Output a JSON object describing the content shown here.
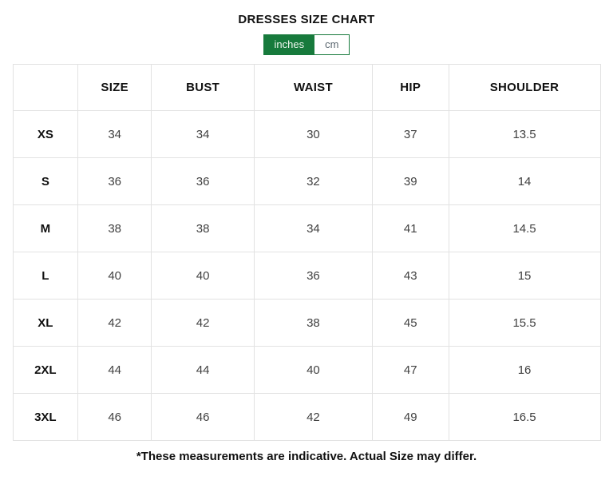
{
  "page": {
    "title": "DRESSES SIZE CHART",
    "footnote": "*These measurements are indicative. Actual Size may differ."
  },
  "unit_toggle": {
    "selected": "inches",
    "options": [
      {
        "label": "inches"
      },
      {
        "label": "cm"
      }
    ]
  },
  "chart_data": {
    "type": "table",
    "title": "DRESSES SIZE CHART",
    "unit": "inches",
    "columns": [
      "",
      "SIZE",
      "BUST",
      "WAIST",
      "HIP",
      "SHOULDER"
    ],
    "rows": [
      {
        "label": "XS",
        "values": [
          "34",
          "34",
          "30",
          "37",
          "13.5"
        ]
      },
      {
        "label": "S",
        "values": [
          "36",
          "36",
          "32",
          "39",
          "14"
        ]
      },
      {
        "label": "M",
        "values": [
          "38",
          "38",
          "34",
          "41",
          "14.5"
        ]
      },
      {
        "label": "L",
        "values": [
          "40",
          "40",
          "36",
          "43",
          "15"
        ]
      },
      {
        "label": "XL",
        "values": [
          "42",
          "42",
          "38",
          "45",
          "15.5"
        ]
      },
      {
        "label": "2XL",
        "values": [
          "44",
          "44",
          "40",
          "47",
          "16"
        ]
      },
      {
        "label": "3XL",
        "values": [
          "46",
          "46",
          "42",
          "49",
          "16.5"
        ]
      }
    ]
  },
  "colors": {
    "accent_green": "#177a3c",
    "cm_text": "#5b6770",
    "table_border": "#e2e2e2",
    "number_text": "#414141",
    "heading_text": "#111111"
  }
}
